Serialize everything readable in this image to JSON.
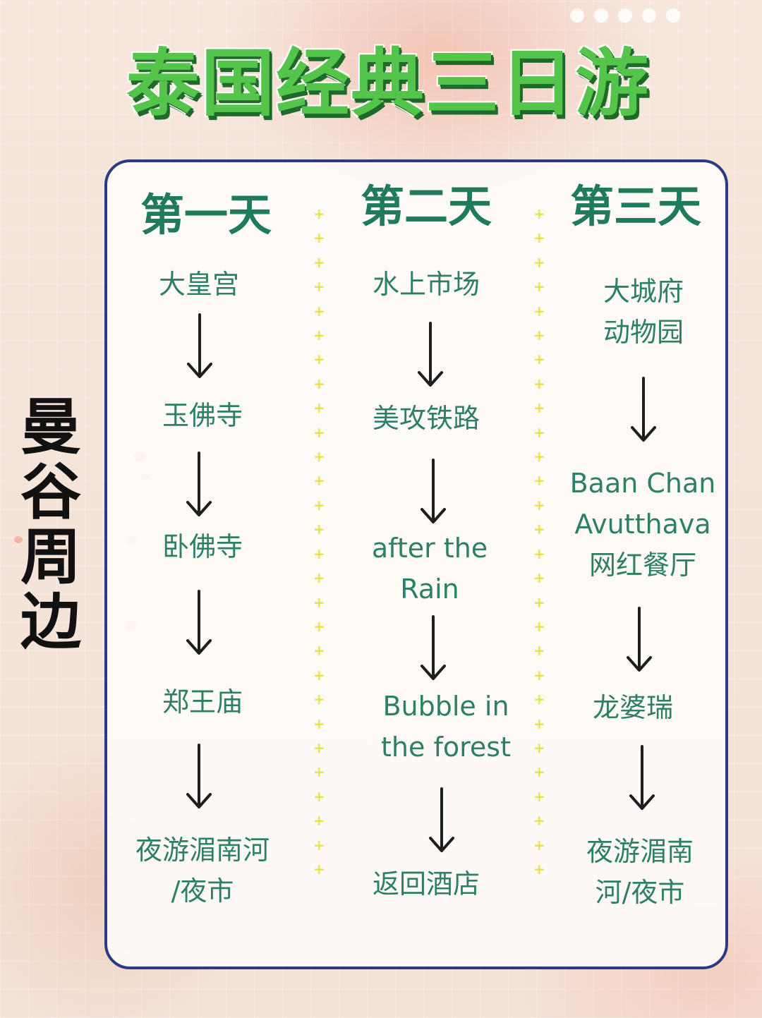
{
  "title": "泰国经典三日游",
  "side_label": [
    "曼",
    "谷",
    "周",
    "边"
  ],
  "days": [
    {
      "label": "第一天",
      "stops": [
        "大皇宫",
        "玉佛寺",
        "卧佛寺",
        "郑王庙",
        "夜游湄南河\n/夜市"
      ]
    },
    {
      "label": "第二天",
      "stops": [
        "水上市场",
        "美攻铁路",
        "after the\nRain",
        "Bubble in\nthe  forest",
        "返回酒店"
      ]
    },
    {
      "label": "第三天",
      "stops": [
        "大城府\n动物园",
        "Baan Chan\nAvutthava\n网红餐厅",
        "龙婆瑞",
        "夜游湄南\n河/夜市"
      ]
    }
  ],
  "colors": {
    "title_green": "#55c44a",
    "text_green": "#2d7f67",
    "border_navy": "#2b3b82",
    "divider_yellow": "#e8e24a"
  }
}
